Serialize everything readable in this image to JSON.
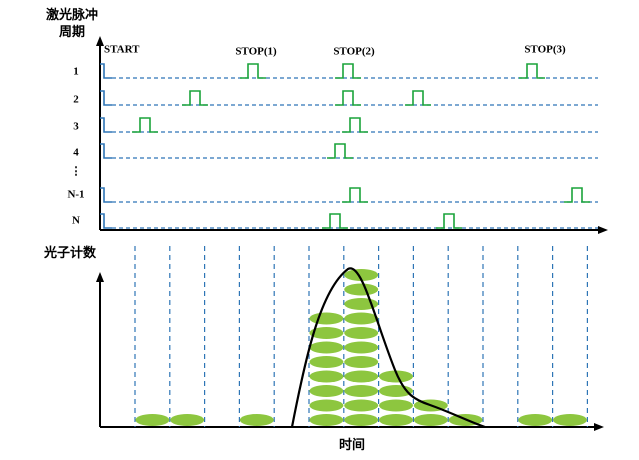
{
  "top": {
    "title": [
      "激光脉冲",
      "周期"
    ],
    "start": "START",
    "stops": [
      "STOP(1)",
      "STOP(2)",
      "STOP(3)"
    ],
    "rows": [
      "1",
      "2",
      "3",
      "4",
      "⋮",
      "N-1",
      "N"
    ]
  },
  "bottom": {
    "ylabel": "光子计数",
    "xlabel": "时间",
    "counts": [
      1,
      1,
      0,
      1,
      0,
      8,
      11,
      4,
      2,
      1,
      0,
      1,
      1
    ]
  }
}
